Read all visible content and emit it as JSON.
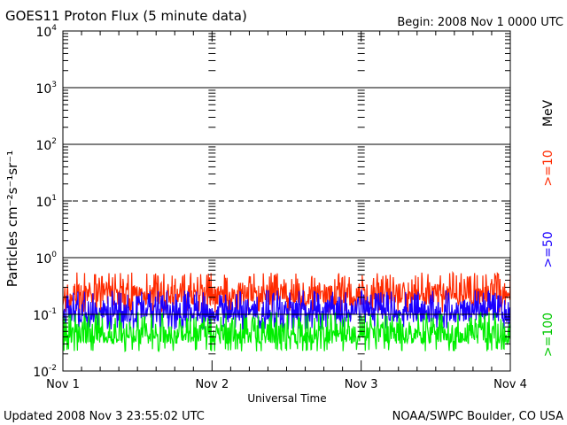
{
  "header": {
    "title": "GOES11 Proton Flux (5 minute data)",
    "begin": "Begin: 2008 Nov 1 0000 UTC"
  },
  "footer": {
    "updated": "Updated 2008 Nov  3 23:55:02 UTC",
    "source": "NOAA/SWPC Boulder, CO USA"
  },
  "legend": {
    "unit": "MeV",
    "ge10": ">=10",
    "ge50": ">=50",
    "ge100": ">=100"
  },
  "chart_data": {
    "type": "line",
    "xlabel": "Universal Time",
    "ylabel": "Particles cm⁻²s⁻¹sr⁻¹",
    "yscale": "log",
    "ylim": [
      0.01,
      10000
    ],
    "xlim": [
      0,
      3
    ],
    "x_ticks": [
      "Nov 1",
      "Nov 2",
      "Nov 3",
      "Nov 4"
    ],
    "y_ticks": [
      {
        "base": "10",
        "exp": "-2"
      },
      {
        "base": "10",
        "exp": "-1"
      },
      {
        "base": "10",
        "exp": "0"
      },
      {
        "base": "10",
        "exp": "1"
      },
      {
        "base": "10",
        "exp": "2"
      },
      {
        "base": "10",
        "exp": "3"
      },
      {
        "base": "10",
        "exp": "4"
      }
    ],
    "gridlines": [
      {
        "value": 0.1,
        "style": "solid"
      },
      {
        "value": 1,
        "style": "solid"
      },
      {
        "value": 10,
        "style": "dashed"
      },
      {
        "value": 100,
        "style": "solid"
      },
      {
        "value": 1000,
        "style": "solid"
      }
    ],
    "series": [
      {
        "name": ">=10 MeV",
        "color": "#ff2a00",
        "typical_range": [
          0.12,
          0.45
        ]
      },
      {
        "name": ">=50 MeV",
        "color": "#1a00ff",
        "typical_range": [
          0.06,
          0.22
        ]
      },
      {
        "name": ">=100 MeV",
        "color": "#00ee00",
        "typical_range": [
          0.025,
          0.09
        ]
      }
    ]
  }
}
